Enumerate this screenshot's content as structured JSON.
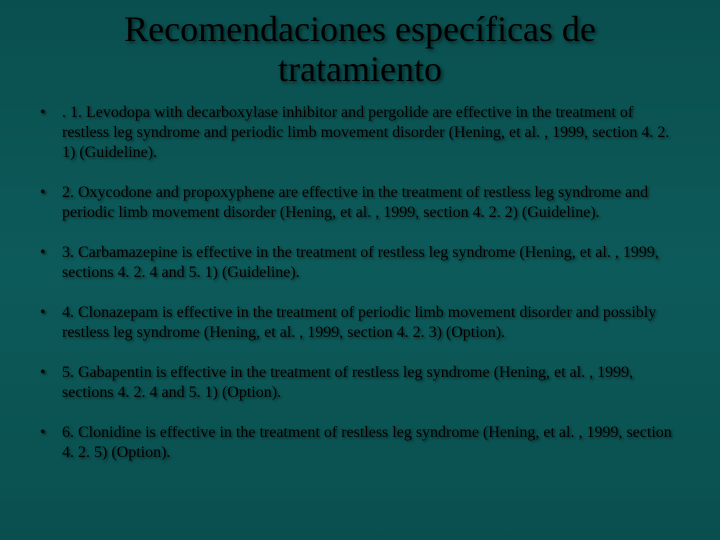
{
  "slide": {
    "background_color": "#0d5a5a",
    "text_color": "#000000",
    "title_fontsize": 36,
    "body_fontsize": 16,
    "font_family": "Times New Roman",
    "title": "Recomendaciones específicas de tratamiento",
    "bullet_marker": "•",
    "items": [
      ". 1. Levodopa with decarboxylase inhibitor and pergolide are effective in the treatment of restless leg syndrome and periodic limb movement disorder (Hening, et al. , 1999, section 4. 2. 1) (Guideline).",
      "2. Oxycodone and propoxyphene are effective in the treatment of restless leg syndrome and periodic limb movement disorder (Hening, et al. , 1999, section 4. 2. 2) (Guideline).",
      "3. Carbamazepine is effective in the treatment of restless leg syndrome (Hening, et al. , 1999, sections 4. 2. 4 and 5. 1) (Guideline).",
      "4. Clonazepam is effective in the treatment of periodic limb movement disorder and possibly restless leg syndrome (Hening, et al. , 1999, section 4. 2. 3) (Option).",
      "5. Gabapentin is effective in the treatment of restless leg syndrome (Hening, et al. , 1999, sections 4. 2. 4 and 5. 1) (Option).",
      "6. Clonidine is effective in the treatment of restless leg syndrome (Hening, et al. , 1999, section 4. 2. 5) (Option)."
    ]
  }
}
